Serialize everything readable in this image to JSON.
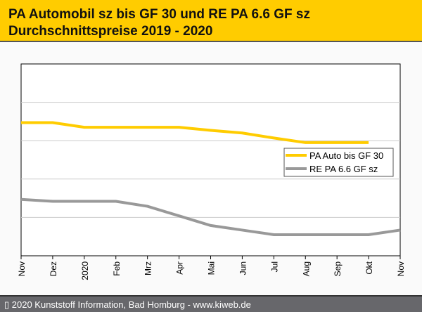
{
  "header": {
    "line1": "PA Automobil sz bis GF 30 und RE PA 6.6 GF sz",
    "line2": "Durchschnittspreise 2019 - 2020"
  },
  "footer": {
    "text": "▯ 2020 Kunststoff Information, Bad Homburg - www.kiweb.de"
  },
  "chart_data": {
    "type": "line",
    "categories": [
      "Nov",
      "Dez",
      "2020",
      "Feb",
      "Mrz",
      "Apr",
      "Mai",
      "Jun",
      "Jul",
      "Aug",
      "Sep",
      "Okt",
      "Nov"
    ],
    "ylim": [
      0,
      5
    ],
    "grid": true,
    "legend_position": "right",
    "series": [
      {
        "name": "PA Auto bis GF 30",
        "color": "#ffcc00",
        "values": [
          3.47,
          3.47,
          3.35,
          3.35,
          3.35,
          3.35,
          3.27,
          3.2,
          3.07,
          2.95,
          2.95,
          2.95,
          null
        ]
      },
      {
        "name": "RE PA 6.6 GF sz",
        "color": "#999999",
        "values": [
          1.47,
          1.42,
          1.42,
          1.42,
          1.29,
          1.04,
          0.79,
          0.67,
          0.55,
          0.55,
          0.55,
          0.55,
          0.67
        ]
      }
    ]
  }
}
